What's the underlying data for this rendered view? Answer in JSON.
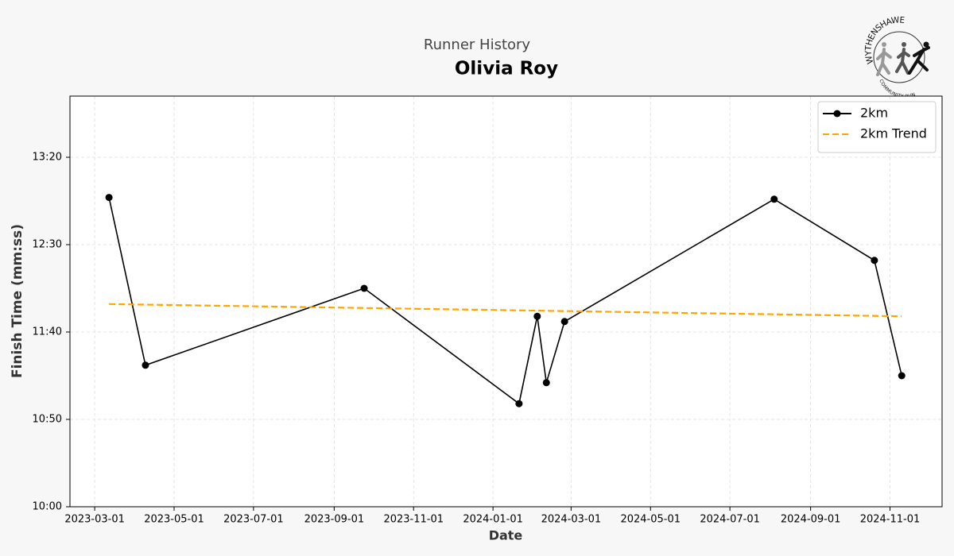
{
  "chart_data": {
    "type": "line",
    "subtitle": "Runner History",
    "title": "Olivia Roy",
    "x_label": "Date",
    "y_label": "Finish Time (mm:ss)",
    "logo": {
      "top_text": "WYTHENSHAWE",
      "bottom_text": "COMMUNITY RUN"
    },
    "series": [
      {
        "name": "2km",
        "color": "#000000",
        "style": "solid-markers",
        "x": [
          "2023-03-12",
          "2023-04-09",
          "2023-09-24",
          "2024-01-21",
          "2024-02-04",
          "2024-02-11",
          "2024-02-25",
          "2024-08-04",
          "2024-10-20",
          "2024-11-10"
        ],
        "values": [
          777,
          681,
          725,
          659,
          709,
          671,
          706,
          776,
          741,
          675
        ]
      },
      {
        "name": "2km Trend",
        "color": "#ffa500",
        "style": "dashed",
        "x": [
          "2023-03-12",
          "2024-11-10"
        ],
        "values": [
          716,
          709
        ]
      }
    ],
    "xlim": [
      "2023-02-10",
      "2024-12-11"
    ],
    "xticks": [
      "2023-03-01",
      "2023-05-01",
      "2023-07-01",
      "2023-09-01",
      "2023-11-01",
      "2024-01-01",
      "2024-03-01",
      "2024-05-01",
      "2024-07-01",
      "2024-09-01",
      "2024-11-01"
    ],
    "ylim": [
      600,
      835
    ],
    "yticks": [
      {
        "value": 600,
        "label": "10:00"
      },
      {
        "value": 650,
        "label": "10:50"
      },
      {
        "value": 700,
        "label": "11:40"
      },
      {
        "value": 750,
        "label": "12:30"
      },
      {
        "value": 800,
        "label": "13:20"
      }
    ],
    "grid": true,
    "legend": "upper right"
  }
}
